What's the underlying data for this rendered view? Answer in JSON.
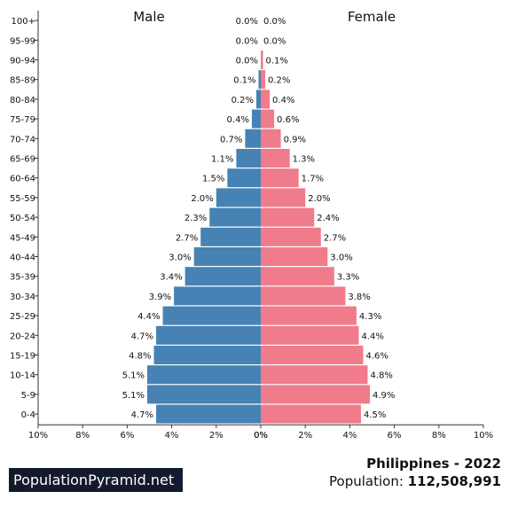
{
  "chart_data": {
    "type": "bar",
    "orientation": "horizontal-pyramid",
    "left_label": "Male",
    "right_label": "Female",
    "categories": [
      "100+",
      "95-99",
      "90-94",
      "85-89",
      "80-84",
      "75-79",
      "70-74",
      "65-69",
      "60-64",
      "55-59",
      "50-54",
      "45-49",
      "40-44",
      "35-39",
      "30-34",
      "25-29",
      "20-24",
      "15-19",
      "10-14",
      "5-9",
      "0-4"
    ],
    "series": [
      {
        "name": "Male",
        "values": [
          0.0,
          0.0,
          0.0,
          0.1,
          0.2,
          0.4,
          0.7,
          1.1,
          1.5,
          2.0,
          2.3,
          2.7,
          3.0,
          3.4,
          3.9,
          4.4,
          4.7,
          4.8,
          5.1,
          5.1,
          4.7
        ],
        "labels": [
          "0.0%",
          "0.0%",
          "0.0%",
          "0.1%",
          "0.2%",
          "0.4%",
          "0.7%",
          "1.1%",
          "1.5%",
          "2.0%",
          "2.3%",
          "2.7%",
          "3.0%",
          "3.4%",
          "3.9%",
          "4.4%",
          "4.7%",
          "4.8%",
          "5.1%",
          "5.1%",
          "4.7%"
        ],
        "color": "#4682b4"
      },
      {
        "name": "Female",
        "values": [
          0.0,
          0.0,
          0.1,
          0.2,
          0.4,
          0.6,
          0.9,
          1.3,
          1.7,
          2.0,
          2.4,
          2.7,
          3.0,
          3.3,
          3.8,
          4.3,
          4.4,
          4.6,
          4.8,
          4.9,
          4.5
        ],
        "labels": [
          "0.0%",
          "0.0%",
          "0.1%",
          "0.2%",
          "0.4%",
          "0.6%",
          "0.9%",
          "1.3%",
          "1.7%",
          "2.0%",
          "2.4%",
          "2.7%",
          "3.0%",
          "3.3%",
          "3.8%",
          "4.3%",
          "4.4%",
          "4.6%",
          "4.8%",
          "4.9%",
          "4.5%"
        ],
        "color": "#f07b8a"
      }
    ],
    "xlim": [
      0,
      10
    ],
    "x_ticks_left": [
      "10%",
      "8%",
      "6%",
      "4%",
      "2%",
      "0%"
    ],
    "x_ticks_right": [
      "0%",
      "2%",
      "4%",
      "6%",
      "8%",
      "10%"
    ],
    "grid": false
  },
  "brand": "PopulationPyramid.net",
  "caption": {
    "title": "Philippines - 2022",
    "population_label": "Population: ",
    "population_value": "112,508,991"
  }
}
